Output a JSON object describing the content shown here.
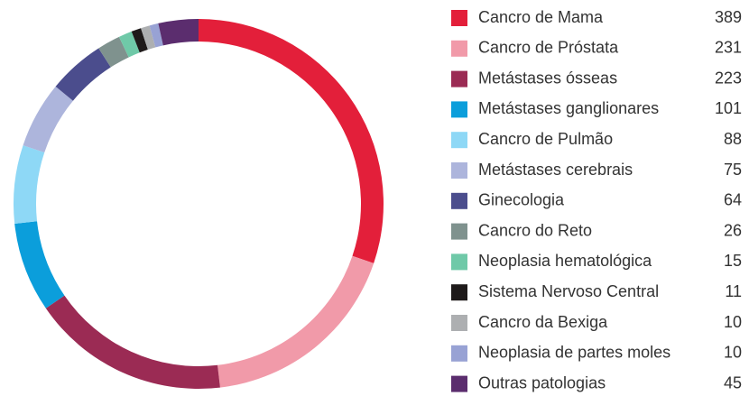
{
  "chart_data": {
    "type": "pie",
    "donut": true,
    "categories": [
      "Cancro de Mama",
      "Cancro de Próstata",
      "Metástases ósseas",
      "Metástases ganglionares",
      "Cancro de Pulmão",
      "Metástases cerebrais",
      "Ginecologia",
      "Cancro do Reto",
      "Neoplasia hematológica",
      "Sistema Nervoso Central",
      "Cancro da Bexiga",
      "Neoplasia de partes moles",
      "Outras patologias"
    ],
    "values": [
      389,
      231,
      223,
      101,
      88,
      75,
      64,
      26,
      15,
      11,
      10,
      10,
      45
    ],
    "colors": [
      "#e31f3a",
      "#f19aa9",
      "#9b2b54",
      "#0b9edb",
      "#8ed8f6",
      "#adb5dc",
      "#4b4d8d",
      "#7f928e",
      "#6fc9a8",
      "#1e1a1a",
      "#adafb1",
      "#98a2d4",
      "#5b2d6e"
    ],
    "legend": "right"
  }
}
